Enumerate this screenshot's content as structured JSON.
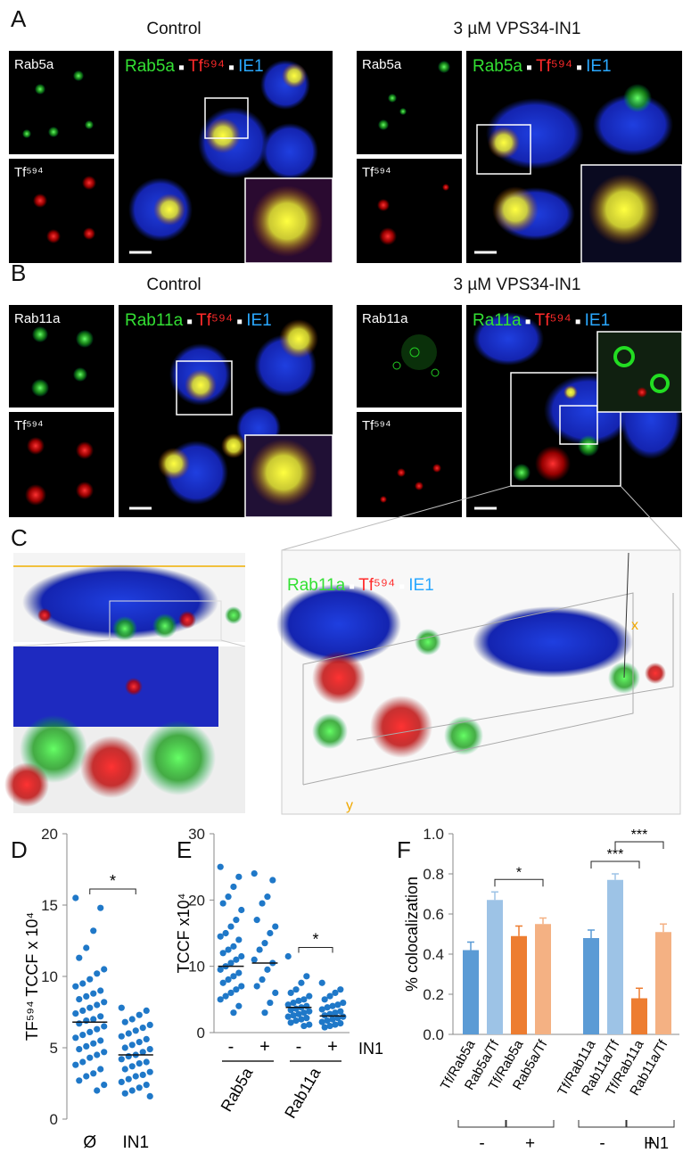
{
  "figure": {
    "panel_a": {
      "letter": "A",
      "control": "Control",
      "treated": "3 µM VPS34-IN1",
      "channel_1": "Rab5a",
      "channel_2": "Tf⁵⁹⁴",
      "merge_control": [
        "Rab5a",
        "Tf⁵⁹⁴",
        "IE1"
      ],
      "merge_treated": [
        "Rab5a",
        "Tf⁵⁹⁴",
        "IE1"
      ]
    },
    "panel_b": {
      "letter": "B",
      "control": "Control",
      "treated": "3 µM VPS34-IN1",
      "channel_1": "Rab11a",
      "channel_2": "Tf⁵⁹⁴",
      "merge_control": [
        "Rab11a",
        "Tf⁵⁹⁴",
        "IE1"
      ],
      "merge_treated": [
        "Ra11a",
        "Tf⁵⁹⁴",
        "IE1"
      ]
    },
    "panel_c": {
      "letter": "C",
      "merge": [
        "Rab11a",
        "Tf⁵⁹⁴",
        "IE1"
      ],
      "axis_x": "x",
      "axis_y": "y"
    }
  },
  "chart_data": [
    {
      "type": "strip",
      "panel_label": "D",
      "y_label": "TF⁵⁹⁴ TCCF x 10⁴",
      "categories": [
        "Ø",
        "IN1"
      ],
      "values": [
        [
          15.5,
          14.8,
          13.2,
          12.0,
          11.3,
          10.5,
          10.2,
          9.8,
          9.5,
          9.3,
          9.0,
          8.8,
          8.6,
          8.4,
          8.2,
          8.0,
          7.8,
          7.6,
          7.4,
          7.2,
          7.0,
          6.9,
          6.7,
          6.5,
          6.3,
          6.1,
          5.9,
          5.7,
          5.5,
          5.3,
          5.1,
          4.9,
          4.7,
          4.5,
          4.3,
          4.0,
          3.8,
          3.5,
          3.2,
          3.0,
          2.7,
          2.4,
          2.0
        ],
        [
          7.8,
          7.6,
          7.3,
          7.0,
          6.8,
          6.6,
          6.4,
          6.2,
          6.0,
          5.8,
          5.6,
          5.4,
          5.2,
          5.0,
          4.9,
          4.7,
          4.5,
          4.4,
          4.2,
          4.0,
          3.9,
          3.7,
          3.5,
          3.3,
          3.1,
          3.0,
          2.8,
          2.6,
          2.4,
          2.2,
          2.0,
          1.8,
          1.6
        ]
      ],
      "means": [
        6.8,
        4.5
      ],
      "color": "#1f78c8",
      "ylim": [
        0,
        20
      ],
      "yticks": [
        0,
        5,
        10,
        15,
        20
      ],
      "significance": [
        {
          "label": "*",
          "between": [
            0,
            1
          ]
        }
      ]
    },
    {
      "type": "strip",
      "panel_label": "E",
      "y_label": "TCCF x10⁴",
      "categories": [
        "-",
        "+",
        "-",
        "+"
      ],
      "groups": [
        "Rab5a",
        "Rab11a"
      ],
      "treatment_label": "IN1",
      "values": [
        [
          25,
          23.5,
          22,
          20.5,
          19.5,
          18.5,
          17,
          16,
          15,
          14.5,
          14,
          13,
          12.5,
          12,
          11.5,
          11,
          10.5,
          10,
          9.5,
          9,
          8.5,
          8,
          7.5,
          7,
          6.5,
          6,
          5.5,
          5,
          4,
          3
        ],
        [
          24,
          23,
          20.5,
          19.5,
          17,
          16,
          15,
          13.5,
          12.5,
          11,
          10.5,
          9.5,
          8,
          7,
          6,
          4.5,
          3
        ],
        [
          11.5,
          8.5,
          7.5,
          6.5,
          6,
          5.5,
          5,
          4.8,
          4.5,
          4.2,
          4,
          3.8,
          3.6,
          3.4,
          3.2,
          3,
          2.8,
          2.6,
          2.4,
          2.2,
          2,
          1.8,
          1.5,
          1.2,
          1
        ],
        [
          7.5,
          6.5,
          6,
          5.5,
          5,
          4.5,
          4.2,
          4,
          3.8,
          3.5,
          3.2,
          3,
          2.8,
          2.6,
          2.4,
          2.2,
          2,
          1.8,
          1.6,
          1.4,
          1.2,
          1,
          0.8
        ]
      ],
      "means": [
        10,
        10.5,
        3.8,
        2.5
      ],
      "color": "#1f78c8",
      "ylim": [
        0,
        30
      ],
      "yticks": [
        0,
        10,
        20,
        30
      ],
      "significance": [
        {
          "label": "*",
          "between": [
            2,
            3
          ]
        }
      ]
    },
    {
      "type": "bar",
      "panel_label": "F",
      "y_label": "% colocalization",
      "categories": [
        "Tf/Rab5a",
        "Rab5a/Tf",
        "Tf/Rab5a",
        "Rab5a/Tf",
        "Tf/Rab11a",
        "Rab11a/Tf",
        "Tf/Rab11a",
        "Rab11a/Tf"
      ],
      "values": [
        0.42,
        0.67,
        0.49,
        0.55,
        0.48,
        0.77,
        0.18,
        0.51
      ],
      "errors": [
        0.04,
        0.04,
        0.05,
        0.03,
        0.04,
        0.03,
        0.05,
        0.04
      ],
      "colors": [
        "#5b9bd5",
        "#9dc3e6",
        "#ed7d31",
        "#f4b183",
        "#5b9bd5",
        "#9dc3e6",
        "#ed7d31",
        "#f4b183"
      ],
      "treatments": [
        "-",
        "+",
        "-",
        "+"
      ],
      "treatment_label": "IN1",
      "ylim": [
        0,
        1
      ],
      "yticks": [
        {
          "value": 0,
          "label": "0.0"
        },
        {
          "value": 0.2,
          "label": "0.2"
        },
        {
          "value": 0.4,
          "label": "0.4"
        },
        {
          "value": 0.6,
          "label": "0.6"
        },
        {
          "value": 0.8,
          "label": "0.8"
        },
        {
          "value": 1,
          "label": "1.0"
        }
      ],
      "significance": [
        {
          "label": "*",
          "between": [
            1,
            3
          ]
        },
        {
          "label": "***",
          "between": [
            4,
            6
          ]
        },
        {
          "label": "***",
          "between": [
            5,
            7
          ]
        }
      ]
    }
  ]
}
